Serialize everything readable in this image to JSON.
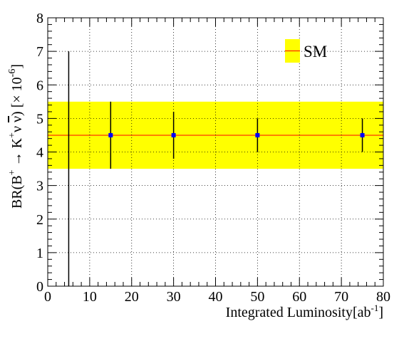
{
  "chart_data": {
    "type": "scatter",
    "xlabel": "Integrated Luminosity[ab",
    "xlabel_sup": "-1",
    "xlabel_end": "]",
    "ylabel": {
      "prefix": "BR(B",
      "sup1": "+",
      "arrow": " → K",
      "sup2": "+",
      "nu": "ν ",
      "nubar": "ν",
      "suffix": ") [× 10",
      "exp": "-6",
      "end": "]"
    },
    "xlim": [
      0,
      80
    ],
    "ylim": [
      0,
      8
    ],
    "xticks": [
      0,
      10,
      20,
      30,
      40,
      50,
      60,
      70,
      80
    ],
    "yticks": [
      0,
      1,
      2,
      3,
      4,
      5,
      6,
      7,
      8
    ],
    "grid": true,
    "legend_position": "top-right",
    "band": {
      "name": "SM",
      "center": 4.5,
      "low": 3.5,
      "high": 5.5,
      "fill_color": "#ffff00",
      "line_color": "#ff0000"
    },
    "points": [
      {
        "x": 5,
        "y": 4.5,
        "ylow": 0,
        "yhigh": 7.0,
        "marker": false
      },
      {
        "x": 15,
        "y": 4.5,
        "ylow": 3.5,
        "yhigh": 5.5,
        "marker": true
      },
      {
        "x": 30,
        "y": 4.5,
        "ylow": 3.8,
        "yhigh": 5.2,
        "marker": true
      },
      {
        "x": 50,
        "y": 4.5,
        "ylow": 4.0,
        "yhigh": 5.0,
        "marker": true
      },
      {
        "x": 75,
        "y": 4.5,
        "ylow": 4.0,
        "yhigh": 5.0,
        "marker": true
      }
    ],
    "marker_color": "#0000ff",
    "errorbar_color": "#000000"
  }
}
